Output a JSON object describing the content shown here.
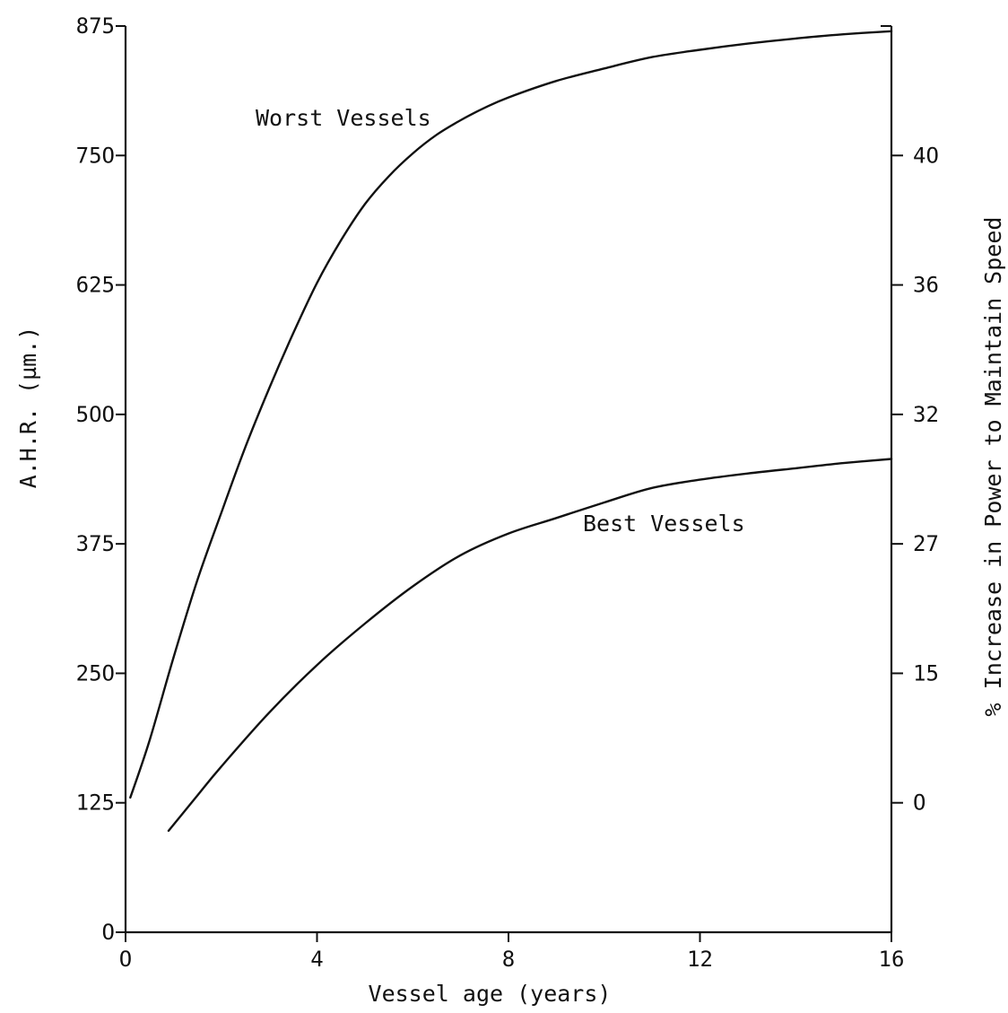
{
  "chart_data": {
    "type": "line",
    "xlabel": "Vessel age (years)",
    "ylabel": "A.H.R. (µm.)",
    "y2label": "% Increase in Power to Maintain Speed",
    "xlim": [
      0,
      16
    ],
    "ylim": [
      0,
      875
    ],
    "x_ticks": [
      0,
      4,
      8,
      12,
      16
    ],
    "x_tick_labels": [
      "O",
      "4",
      "8",
      "12",
      "16"
    ],
    "y_ticks": [
      0,
      125,
      250,
      375,
      500,
      625,
      750,
      875
    ],
    "y_tick_labels": [
      "O",
      "125",
      "25O",
      "375",
      "5OO",
      "625",
      "75O",
      "875"
    ],
    "y2_ticks": [
      {
        "ahr": 125,
        "label": "O"
      },
      {
        "ahr": 250,
        "label": "15"
      },
      {
        "ahr": 375,
        "label": "27"
      },
      {
        "ahr": 500,
        "label": "32"
      },
      {
        "ahr": 625,
        "label": "36"
      },
      {
        "ahr": 750,
        "label": "4O"
      }
    ],
    "grid": false,
    "legend": "none",
    "series": [
      {
        "name": "Worst Vessels",
        "x": [
          0.1,
          0.5,
          1.0,
          1.5,
          2.0,
          2.5,
          3.0,
          3.5,
          4.0,
          4.5,
          5.0,
          5.5,
          6.0,
          6.5,
          7.0,
          7.5,
          8.0,
          9.0,
          10.0,
          11.0,
          12.0,
          13.0,
          14.0,
          15.0,
          16.0
        ],
        "y": [
          130,
          185,
          265,
          340,
          405,
          468,
          525,
          578,
          627,
          668,
          703,
          730,
          752,
          770,
          784,
          796,
          806,
          822,
          834,
          845,
          852,
          858,
          863,
          867,
          870
        ]
      },
      {
        "name": "Best Vessels",
        "x": [
          0.9,
          1.5,
          2.0,
          3.0,
          4.0,
          5.0,
          6.0,
          7.0,
          8.0,
          9.0,
          10.0,
          11.0,
          12.0,
          13.0,
          14.0,
          15.0,
          16.0
        ],
        "y": [
          98,
          132,
          160,
          212,
          258,
          298,
          334,
          364,
          385,
          400,
          415,
          429,
          437,
          443,
          448,
          453,
          457
        ]
      }
    ]
  }
}
